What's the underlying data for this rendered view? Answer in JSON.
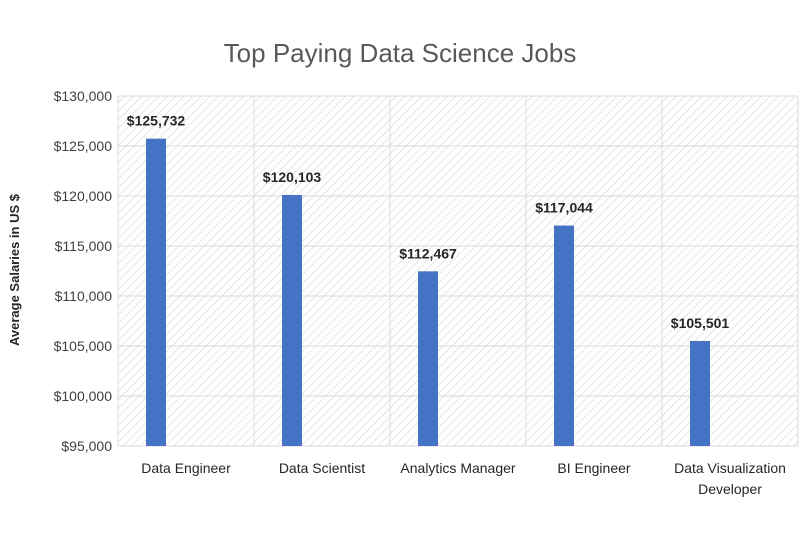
{
  "chart_data": {
    "type": "bar",
    "title": "Top Paying Data Science Jobs",
    "xlabel": "",
    "ylabel": "Average Salaries in US $",
    "categories": [
      [
        "Data Engineer"
      ],
      [
        "Data Scientist"
      ],
      [
        "Analytics Manager"
      ],
      [
        "BI Engineer"
      ],
      [
        "Data Visualization",
        "Developer"
      ]
    ],
    "values": [
      125732,
      120103,
      112467,
      117044,
      105501
    ],
    "data_labels": [
      "$125,732",
      "$120,103",
      "$112,467",
      "$117,044",
      "$105,501"
    ],
    "ylim": [
      95000,
      130000
    ],
    "yticks": [
      95000,
      100000,
      105000,
      110000,
      115000,
      120000,
      125000,
      130000
    ],
    "ytick_labels": [
      "$95,000",
      "$100,000",
      "$105,000",
      "$110,000",
      "$115,000",
      "$120,000",
      "$125,000",
      "$130,000"
    ],
    "bar_color": "#4472c4",
    "grid": true,
    "legend": "none"
  }
}
